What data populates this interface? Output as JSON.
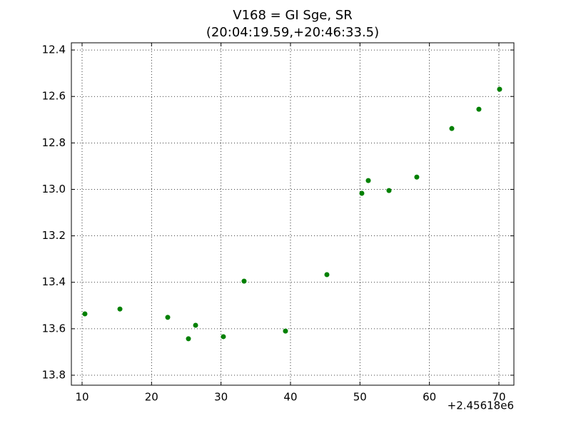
{
  "chart_data": {
    "type": "scatter",
    "title": "V168 = GI Sge, SR",
    "subtitle": "(20:04:19.59,+20:46:33.5)",
    "x_offset_label": "+2.45618e6",
    "series": [
      {
        "color": "#008000",
        "x": [
          10.41,
          15.45,
          22.33,
          25.31,
          26.34,
          30.34,
          33.32,
          39.28,
          45.24,
          50.27,
          51.2,
          54.18,
          58.18,
          63.22,
          67.12,
          70.1
        ],
        "values": [
          13.536,
          13.515,
          13.551,
          13.643,
          13.585,
          13.634,
          13.395,
          13.61,
          13.367,
          13.017,
          12.962,
          13.005,
          12.947,
          12.738,
          12.655,
          12.569
        ]
      }
    ],
    "xlim": [
      8.46,
      72.16
    ],
    "ylim": [
      13.843,
      12.369
    ],
    "xticks": [
      10,
      20,
      30,
      40,
      50,
      60,
      70
    ],
    "yticks": [
      12.4,
      12.6,
      12.8,
      {
        "value": 13,
        "label": "13.0"
      },
      13.2,
      13.4,
      13.6,
      13.8
    ],
    "grid": true
  }
}
